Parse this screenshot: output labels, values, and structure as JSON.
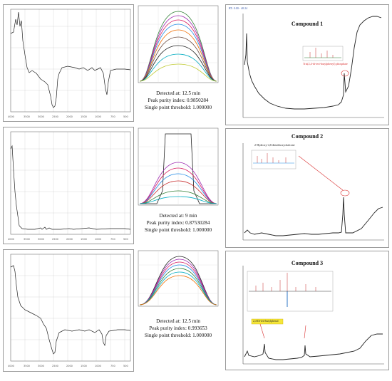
{
  "purity_panels": [
    {
      "detected_at": "Detected at: 12.5 min",
      "purity_index": "Peak purity index: 0.9850284",
      "threshold": "Single point threshold: 1.000000"
    },
    {
      "detected_at": "Detected at: 9 min",
      "purity_index": "Peak purity index: 0.87530284",
      "threshold": "Single point threshold: 1.000000"
    },
    {
      "detected_at": "Detected at: 12.5 min",
      "purity_index": "Peak purity index: 0.993653",
      "threshold": "Single point threshold: 1.000000"
    }
  ],
  "compounds": [
    {
      "title": "Compound 1",
      "header": "RT: 0.00 - 40.24",
      "callout": "Tris(2,4-di-tert-butylphenyl) phosphate",
      "callout_color": "#d93030"
    },
    {
      "title": "Compound 2",
      "header": "",
      "callout": "2-Hydroxy-4,6-dimethoxychalcone",
      "callout_color": "#222222"
    },
    {
      "title": "Compound 3",
      "header": "",
      "callout": "2,4-Di-tert-butylphenol",
      "callout_color": "#222222"
    }
  ],
  "colors": {
    "border": "#9a9a9a",
    "callout_red": "#d93030",
    "highlight_yellow": "#f5e63a",
    "trace": "#222222"
  }
}
